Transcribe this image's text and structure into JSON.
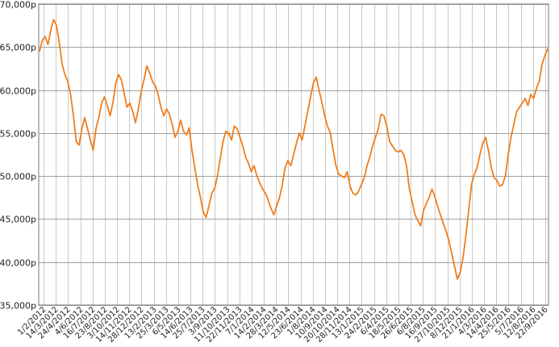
{
  "chart_data": {
    "type": "line",
    "title": "",
    "xlabel": "",
    "ylabel": "",
    "ylim": [
      35000,
      70000
    ],
    "grid": {
      "horizontal": true,
      "vertical": true
    },
    "legend": "none",
    "colors": {
      "line": "#f07d1e",
      "grid": "#c8c8c8",
      "major_grid": "#a0a0a0",
      "axis": "#333333"
    },
    "yticks": [
      {
        "value": 35000,
        "label": "35,000p"
      },
      {
        "value": 40000,
        "label": "40,000p"
      },
      {
        "value": 45000,
        "label": "45,000p"
      },
      {
        "value": 50000,
        "label": "50,000p"
      },
      {
        "value": 55000,
        "label": "55,000p"
      },
      {
        "value": 60000,
        "label": "60,000p"
      },
      {
        "value": 65000,
        "label": "65,000p"
      },
      {
        "value": 70000,
        "label": "70,000p"
      }
    ],
    "xticks": [
      "1/2/2012",
      "14/3/2012",
      "24/4/2012",
      "4/6/2012",
      "16/7/2012",
      "23/8/2012",
      "3/10/2012",
      "14/11/2012",
      "28/12/2012",
      "13/2/2013",
      "25/3/2013",
      "6/5/2013",
      "14/6/2013",
      "25/7/2013",
      "3/9/2013",
      "11/10/2013",
      "22/11/2013",
      "7/1/2014",
      "14/2/2014",
      "28/3/2014",
      "12/5/2014",
      "23/6/2014",
      "1/8/2014",
      "10/9/2014",
      "20/10/2014",
      "28/11/2014",
      "13/1/2015",
      "24/2/2015",
      "6/4/2015",
      "18/5/2015",
      "26/6/2015",
      "6/8/2015",
      "16/9/2015",
      "27/10/2015",
      "8/12/2015",
      "21/1/2016",
      "4/3/2016",
      "14/4/2016",
      "25/5/2016",
      "5/7/2016",
      "12/8/2016",
      "22/9/2016"
    ],
    "series": [
      {
        "values": [
          64500,
          65800,
          66200,
          65300,
          67000,
          68200,
          67500,
          65500,
          63000,
          61800,
          61000,
          59500,
          57000,
          54000,
          53600,
          55500,
          56800,
          55500,
          54200,
          53000,
          55500,
          56800,
          58500,
          59200,
          58200,
          57000,
          58500,
          60800,
          61800,
          61200,
          59600,
          58000,
          58500,
          57500,
          56200,
          57800,
          59800,
          61200,
          62800,
          62000,
          61000,
          60500,
          59500,
          58000,
          57000,
          57800,
          57200,
          56000,
          54500,
          55200,
          56500,
          55200,
          54800,
          55600,
          53000,
          51000,
          49000,
          47500,
          45800,
          45200,
          46500,
          48000,
          48500,
          50000,
          52000,
          54000,
          55200,
          55000,
          54200,
          55800,
          55500,
          54500,
          53500,
          52200,
          51500,
          50500,
          51200,
          50000,
          49200,
          48500,
          48000,
          47200,
          46200,
          45500,
          46500,
          47500,
          49000,
          51000,
          51800,
          51200,
          52500,
          53800,
          55000,
          54200,
          55800,
          57500,
          59200,
          60800,
          61500,
          60000,
          58600,
          57000,
          55800,
          55000,
          53000,
          51200,
          50200,
          50000,
          49800,
          50500,
          48800,
          48000,
          47800,
          48200,
          49000,
          49800,
          51200,
          52200,
          53500,
          54500,
          55500,
          57200,
          57000,
          55800,
          54000,
          53500,
          53000,
          52800,
          53000,
          52500,
          51200,
          48500,
          47000,
          45500,
          44800,
          44200,
          46000,
          46800,
          47500,
          48500,
          47600,
          46500,
          45500,
          44500,
          43600,
          42500,
          41000,
          39500,
          38000,
          38800,
          40500,
          43000,
          46000,
          49000,
          50200,
          51000,
          52500,
          53800,
          54500,
          53000,
          51000,
          49800,
          49500,
          48800,
          49000,
          50000,
          52500,
          54500,
          56000,
          57500,
          58000,
          58500,
          59000,
          58200,
          59500,
          59000,
          60200,
          61000,
          63000,
          64000,
          64800
        ]
      }
    ]
  }
}
